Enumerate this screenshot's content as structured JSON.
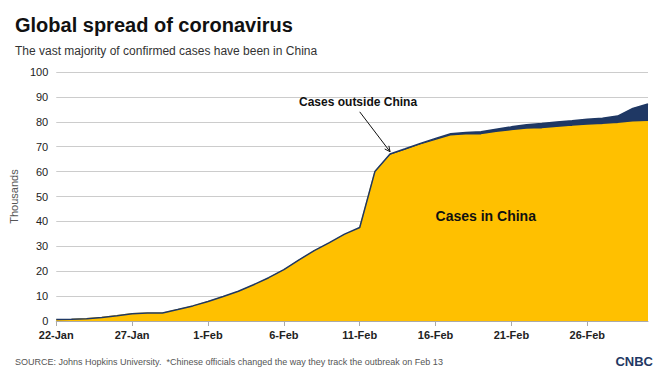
{
  "chart_data": {
    "type": "area",
    "title": "Global spread of coronavirus",
    "subtitle": "The vast majority of confirmed cases have been in China",
    "ylabel": "Thousands",
    "source_text": "SOURCE: Johns Hopkins University.  *Chinese officials changed the way they track the outbreak on Feb 13",
    "logo_text": "CNBC",
    "categories": [
      "22-Jan",
      null,
      null,
      null,
      null,
      "27-Jan",
      null,
      null,
      null,
      null,
      "1-Feb",
      null,
      null,
      null,
      null,
      "6-Feb",
      null,
      null,
      null,
      null,
      "11-Feb",
      null,
      null,
      null,
      null,
      "16-Feb",
      null,
      null,
      null,
      null,
      "21-Feb",
      null,
      null,
      null,
      null,
      "26-Feb",
      null,
      null,
      null,
      null
    ],
    "series": [
      {
        "name": "Cases in China",
        "color": "#FFC000",
        "values": [
          0.548,
          0.643,
          0.92,
          1.406,
          2.075,
          2.877,
          3.15,
          3.15,
          4.515,
          5.974,
          7.711,
          9.692,
          11.791,
          14.38,
          17.205,
          20.438,
          24.324,
          28.018,
          31.161,
          34.546,
          37.198,
          59.804,
          66.492,
          68.5,
          70.548,
          72.436,
          74.185,
          74.576,
          74.675,
          75.569,
          76.288,
          76.936,
          77.15,
          77.658,
          78.064,
          78.497,
          78.824,
          79.251,
          79.824,
          80.026
        ]
      },
      {
        "name": "Cases outside China",
        "color": "#1F3864",
        "values": [
          0.007,
          0.011,
          0.021,
          0.028,
          0.043,
          0.05,
          0.094,
          0.094,
          0.1,
          0.091,
          0.107,
          0.134,
          0.162,
          0.177,
          0.186,
          0.192,
          0.23,
          0.258,
          0.32,
          0.34,
          0.354,
          0.199,
          0.608,
          0.697,
          0.784,
          0.896,
          1.019,
          1.172,
          1.321,
          1.479,
          1.677,
          1.875,
          2.163,
          2.31,
          2.349,
          2.498,
          2.571,
          3.043,
          5.579,
          7.111
        ]
      }
    ],
    "stacked": true,
    "ylim": [
      0,
      100
    ],
    "yticks": [
      0,
      10,
      20,
      30,
      40,
      50,
      60,
      70,
      80,
      90,
      100
    ],
    "grid": true
  }
}
